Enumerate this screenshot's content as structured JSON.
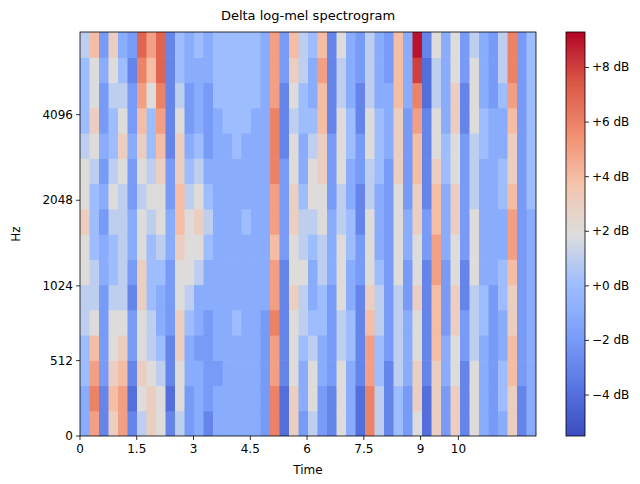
{
  "chart_data": {
    "type": "heatmap",
    "title": "Delta log-mel spectrogram",
    "x_label": "Time",
    "y_label": "Hz",
    "xlim": [
      0,
      12.05
    ],
    "ylim": [
      0,
      8000
    ],
    "xticks": [
      0,
      1.5,
      3,
      4.5,
      6,
      7.5,
      9,
      10
    ],
    "yticks": [
      0,
      512,
      1024,
      2048,
      4096
    ],
    "log": "y",
    "y_edges": [
      0,
      172,
      343,
      515,
      686,
      858,
      1035,
      1270,
      1558,
      1912,
      2346,
      2878,
      3531,
      4332,
      5315,
      6521,
      8000
    ],
    "cells": [
      [
        -1,
        -1,
        0,
        0,
        1,
        1,
        2,
        2,
        3,
        2,
        2,
        1,
        0,
        0,
        0,
        1
      ],
      [
        5,
        6,
        5,
        4,
        2,
        1,
        1,
        0,
        0,
        0,
        1,
        2,
        3,
        2,
        2,
        4
      ],
      [
        -3,
        -3,
        -2,
        -2,
        -2,
        -2,
        -1,
        -1,
        -2,
        -1,
        -2,
        -1,
        -2,
        -2,
        -1,
        -2
      ],
      [
        3,
        4,
        3,
        2,
        2,
        1,
        0,
        0,
        1,
        2,
        1,
        0,
        0,
        1,
        2,
        3
      ],
      [
        5,
        5,
        4,
        3,
        2,
        1,
        1,
        1,
        1,
        1,
        2,
        3,
        2,
        1,
        0,
        -1
      ],
      [
        -3,
        -4,
        -3,
        -2,
        -2,
        -3,
        -2,
        -1,
        -1,
        -2,
        -2,
        -1,
        -2,
        -2,
        -3,
        -2
      ],
      [
        1,
        2,
        3,
        2,
        2,
        3,
        3,
        2,
        2,
        1,
        2,
        3,
        4,
        5,
        6,
        7
      ],
      [
        3,
        3,
        2,
        1,
        1,
        0,
        0,
        0,
        1,
        2,
        1,
        0,
        0,
        2,
        4,
        5
      ],
      [
        2,
        2,
        1,
        0,
        -1,
        -1,
        0,
        1,
        2,
        2,
        3,
        4,
        5,
        6,
        7,
        7
      ],
      [
        -3,
        -4,
        -3,
        -3,
        -2,
        -2,
        -2,
        -1,
        -1,
        -2,
        -2,
        -3,
        -3,
        -3,
        -3,
        -3
      ],
      [
        1,
        2,
        2,
        3,
        3,
        2,
        2,
        3,
        4,
        4,
        3,
        3,
        2,
        1,
        0,
        0
      ],
      [
        -2,
        -2,
        -1,
        -1,
        0,
        1,
        2,
        2,
        2,
        1,
        0,
        -1,
        -2,
        -2,
        -1,
        -1
      ],
      [
        -1,
        -1,
        -1,
        -2,
        -1,
        -1,
        1,
        2,
        3,
        2,
        1,
        0,
        -1,
        -1,
        -1,
        0
      ],
      [
        -3,
        -2,
        -2,
        -2,
        -2,
        -1,
        -1,
        0,
        1,
        0,
        -1,
        -2,
        -2,
        -2,
        -1,
        -1
      ],
      [
        -1,
        -1,
        -2,
        -1,
        -1,
        -1,
        -1,
        -1,
        -1,
        -1,
        -1,
        -1,
        -1,
        0,
        0,
        0
      ],
      [
        -1,
        -1,
        -1,
        -1,
        -1,
        -1,
        -1,
        -1,
        -1,
        -1,
        -1,
        -1,
        0,
        0,
        0,
        0
      ],
      [
        -1,
        -1,
        -1,
        -1,
        0,
        -1,
        -1,
        -1,
        -1,
        -1,
        -1,
        0,
        0,
        0,
        0,
        0
      ],
      [
        -1,
        -1,
        -1,
        -1,
        -1,
        -1,
        -1,
        -1,
        0,
        -1,
        -1,
        -1,
        0,
        0,
        0,
        0
      ],
      [
        -1,
        -1,
        -1,
        -1,
        -1,
        -1,
        -1,
        -1,
        -1,
        -1,
        -1,
        -1,
        -1,
        0,
        0,
        0
      ],
      [
        -2,
        -2,
        -2,
        -2,
        -2,
        -1,
        -1,
        -1,
        -1,
        -1,
        -1,
        -1,
        -1,
        -1,
        -1,
        -1
      ],
      [
        6,
        6,
        5,
        5,
        6,
        5,
        5,
        4,
        5,
        5,
        6,
        6,
        6,
        5,
        5,
        5
      ],
      [
        -4,
        -4,
        -3,
        -3,
        -3,
        -3,
        -3,
        -2,
        -2,
        -2,
        -2,
        -3,
        -3,
        -3,
        -2,
        -2
      ],
      [
        3,
        3,
        2,
        2,
        2,
        3,
        2,
        2,
        3,
        3,
        2,
        2,
        1,
        2,
        3,
        4
      ],
      [
        -2,
        -1,
        -1,
        0,
        1,
        1,
        2,
        1,
        1,
        0,
        -1,
        -1,
        0,
        0,
        1,
        1
      ],
      [
        1,
        2,
        2,
        1,
        0,
        -1,
        -1,
        0,
        1,
        2,
        2,
        1,
        0,
        -1,
        -1,
        0
      ],
      [
        -2,
        -2,
        -1,
        -1,
        0,
        0,
        1,
        1,
        2,
        2,
        3,
        3,
        4,
        4,
        5,
        4
      ],
      [
        -3,
        -3,
        -2,
        -2,
        -2,
        -2,
        -1,
        -1,
        -1,
        -2,
        -2,
        -2,
        -3,
        -3,
        -3,
        -3
      ],
      [
        2,
        2,
        2,
        1,
        1,
        2,
        2,
        2,
        1,
        1,
        2,
        2,
        2,
        1,
        1,
        2
      ],
      [
        -1,
        -1,
        -1,
        0,
        0,
        -1,
        -1,
        0,
        0,
        -1,
        -1,
        0,
        0,
        -1,
        -1,
        -1
      ],
      [
        -4,
        -4,
        -3,
        -3,
        -3,
        -3,
        -2,
        -2,
        -3,
        -3,
        -2,
        -2,
        -3,
        -3,
        -2,
        -2
      ],
      [
        6,
        6,
        5,
        5,
        4,
        3,
        2,
        2,
        2,
        1,
        1,
        2,
        2,
        1,
        1,
        1
      ],
      [
        1,
        1,
        0,
        0,
        1,
        1,
        0,
        -1,
        -1,
        -1,
        0,
        0,
        0,
        -1,
        -1,
        -1
      ],
      [
        -3,
        -3,
        -3,
        -2,
        -2,
        -2,
        -2,
        -2,
        -2,
        -2,
        -2,
        -1,
        -1,
        -1,
        -2,
        -2
      ],
      [
        0,
        0,
        1,
        1,
        1,
        1,
        2,
        2,
        2,
        2,
        3,
        3,
        3,
        4,
        4,
        4
      ],
      [
        -2,
        -2,
        -1,
        -1,
        -1,
        -2,
        -2,
        -1,
        -1,
        -2,
        -2,
        -2,
        -2,
        -1,
        -1,
        -1
      ],
      [
        2,
        3,
        3,
        2,
        2,
        3,
        2,
        2,
        3,
        3,
        4,
        4,
        5,
        6,
        8,
        9
      ],
      [
        -4,
        -4,
        -3,
        -3,
        -3,
        -3,
        -3,
        -2,
        -2,
        -3,
        -3,
        -3,
        -3,
        -4,
        -4,
        -3
      ],
      [
        3,
        3,
        3,
        4,
        4,
        4,
        5,
        5,
        4,
        4,
        3,
        2,
        2,
        1,
        1,
        2
      ],
      [
        -2,
        -2,
        -1,
        -1,
        -2,
        -2,
        -2,
        -1,
        -1,
        -1,
        0,
        0,
        -1,
        -1,
        -1,
        -1
      ],
      [
        3,
        3,
        2,
        2,
        3,
        3,
        2,
        2,
        3,
        3,
        2,
        2,
        3,
        3,
        2,
        2
      ],
      [
        -3,
        -3,
        -3,
        -2,
        -2,
        -3,
        -3,
        -2,
        -2,
        -2,
        -2,
        -2,
        -3,
        -3,
        -2,
        -2
      ],
      [
        2,
        2,
        2,
        1,
        1,
        1,
        2,
        2,
        2,
        1,
        1,
        1,
        2,
        2,
        2,
        1
      ],
      [
        -1,
        -1,
        -1,
        -1,
        0,
        0,
        -1,
        -1,
        -1,
        -1,
        -1,
        0,
        0,
        -1,
        -1,
        -1
      ],
      [
        -2,
        -2,
        -2,
        -2,
        -2,
        -2,
        -1,
        -1,
        -1,
        -1,
        -1,
        -1,
        -1,
        -2,
        -2,
        -2
      ],
      [
        -1,
        0,
        0,
        -1,
        -1,
        0,
        0,
        -1,
        -1,
        0,
        0,
        -1,
        -1,
        0,
        1,
        1
      ],
      [
        3,
        3,
        4,
        4,
        3,
        3,
        4,
        5,
        5,
        4,
        3,
        3,
        4,
        5,
        6,
        6
      ],
      [
        -3,
        -3,
        -2,
        -2,
        -2,
        -2,
        -2,
        -2,
        -2,
        -2,
        -2,
        -2,
        -2,
        -2,
        -2,
        -2
      ],
      [
        -1,
        -1,
        -1,
        -1,
        -1,
        -1,
        -1,
        -1,
        -1,
        0,
        0,
        0,
        0,
        0,
        0,
        0
      ]
    ],
    "colorbar": {
      "range": [
        -5.5,
        9.3
      ],
      "ticks": [
        {
          "value": -4,
          "label": "−4 dB"
        },
        {
          "value": -2,
          "label": "−2 dB"
        },
        {
          "value": 0,
          "label": "+0 dB"
        },
        {
          "value": 2,
          "label": "+2 dB"
        },
        {
          "value": 4,
          "label": "+4 dB"
        },
        {
          "value": 6,
          "label": "+6 dB"
        },
        {
          "value": 8,
          "label": "+8 dB"
        }
      ]
    }
  }
}
